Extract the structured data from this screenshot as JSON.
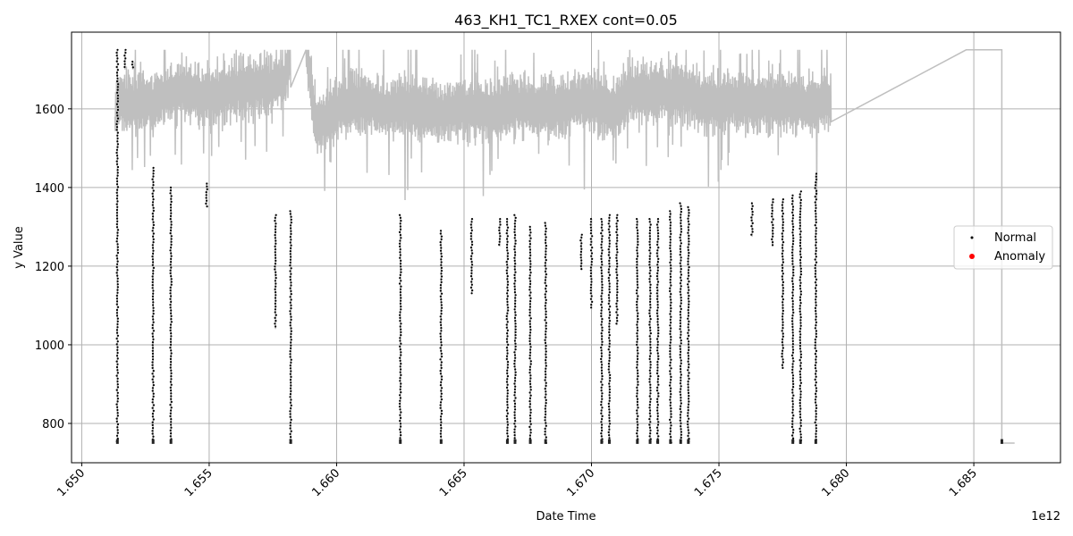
{
  "chart_data": {
    "type": "line",
    "title": "463_KH1_TC1_RXEX cont=0.05",
    "xlabel": "Date Time",
    "ylabel": "y Value",
    "x_offset_label": "1e12",
    "xlim": [
      1.6496,
      1.6884
    ],
    "ylim": [
      700,
      1795
    ],
    "x_ticks": [
      1.65,
      1.655,
      1.66,
      1.665,
      1.67,
      1.675,
      1.68,
      1.685
    ],
    "x_tick_labels": [
      "1.650",
      "1.655",
      "1.660",
      "1.665",
      "1.670",
      "1.675",
      "1.680",
      "1.685"
    ],
    "y_ticks": [
      800,
      1000,
      1200,
      1400,
      1600
    ],
    "y_tick_labels": [
      "800",
      "1000",
      "1200",
      "1400",
      "1600"
    ],
    "grid": true,
    "legend_position": "center-right",
    "colors": {
      "line": "#bfbfbf",
      "normal": "#000000",
      "anomaly": "#ff0000",
      "grid": "#b0b0b0"
    },
    "series": [
      {
        "name": "",
        "kind": "line",
        "color": "#bfbfbf",
        "points": [
          [
            1.6513,
            1580
          ],
          [
            1.6514,
            1620
          ],
          [
            1.652,
            1610
          ],
          [
            1.6525,
            1630
          ],
          [
            1.6528,
            1615
          ],
          [
            1.6532,
            1640
          ],
          [
            1.654,
            1650
          ],
          [
            1.6548,
            1630
          ],
          [
            1.6555,
            1640
          ],
          [
            1.6565,
            1655
          ],
          [
            1.6575,
            1660
          ],
          [
            1.658,
            1680
          ],
          [
            1.6582,
            1750
          ],
          [
            1.6588,
            1750
          ],
          [
            1.6592,
            1560
          ],
          [
            1.66,
            1600
          ],
          [
            1.661,
            1620
          ],
          [
            1.662,
            1600
          ],
          [
            1.663,
            1610
          ],
          [
            1.664,
            1590
          ],
          [
            1.665,
            1600
          ],
          [
            1.666,
            1590
          ],
          [
            1.667,
            1610
          ],
          [
            1.668,
            1600
          ],
          [
            1.669,
            1610
          ],
          [
            1.67,
            1620
          ],
          [
            1.6708,
            1600
          ],
          [
            1.6715,
            1640
          ],
          [
            1.6725,
            1640
          ],
          [
            1.6735,
            1650
          ],
          [
            1.6745,
            1610
          ],
          [
            1.6755,
            1620
          ],
          [
            1.6765,
            1615
          ],
          [
            1.6775,
            1620
          ],
          [
            1.6785,
            1610
          ],
          [
            1.6794,
            1620
          ],
          [
            1.6847,
            1750
          ],
          [
            1.6861,
            1750
          ],
          [
            1.6861,
            750
          ],
          [
            1.6866,
            750
          ]
        ]
      },
      {
        "name": "Normal",
        "kind": "scatter",
        "color": "#000000",
        "point_ranges": [
          [
            1.6514,
            750,
            1750
          ],
          [
            1.6517,
            1700,
            1750
          ],
          [
            1.652,
            1700,
            1720
          ],
          [
            1.6528,
            750,
            1450
          ],
          [
            1.6535,
            750,
            1400
          ],
          [
            1.6549,
            1350,
            1410
          ],
          [
            1.6576,
            1040,
            1330
          ],
          [
            1.6582,
            750,
            1340
          ],
          [
            1.6625,
            750,
            1330
          ],
          [
            1.6641,
            760,
            1290
          ],
          [
            1.6653,
            1130,
            1320
          ],
          [
            1.6664,
            1250,
            1320
          ],
          [
            1.6667,
            750,
            1320
          ],
          [
            1.667,
            750,
            1330
          ],
          [
            1.6676,
            750,
            1300
          ],
          [
            1.6682,
            750,
            1310
          ],
          [
            1.6696,
            1190,
            1280
          ],
          [
            1.67,
            1090,
            1320
          ],
          [
            1.6704,
            750,
            1320
          ],
          [
            1.6707,
            750,
            1330
          ],
          [
            1.671,
            1050,
            1330
          ],
          [
            1.6718,
            760,
            1320
          ],
          [
            1.6723,
            750,
            1320
          ],
          [
            1.6726,
            750,
            1320
          ],
          [
            1.6731,
            750,
            1340
          ],
          [
            1.6735,
            750,
            1360
          ],
          [
            1.6738,
            750,
            1350
          ],
          [
            1.6763,
            1275,
            1360
          ],
          [
            1.6771,
            1250,
            1370
          ],
          [
            1.6775,
            940,
            1370
          ],
          [
            1.6779,
            750,
            1380
          ],
          [
            1.6782,
            750,
            1390
          ],
          [
            1.6788,
            750,
            1435
          ],
          [
            1.6861,
            750,
            755
          ]
        ]
      },
      {
        "name": "Anomaly",
        "kind": "scatter",
        "color": "#ff0000",
        "points": []
      }
    ]
  }
}
